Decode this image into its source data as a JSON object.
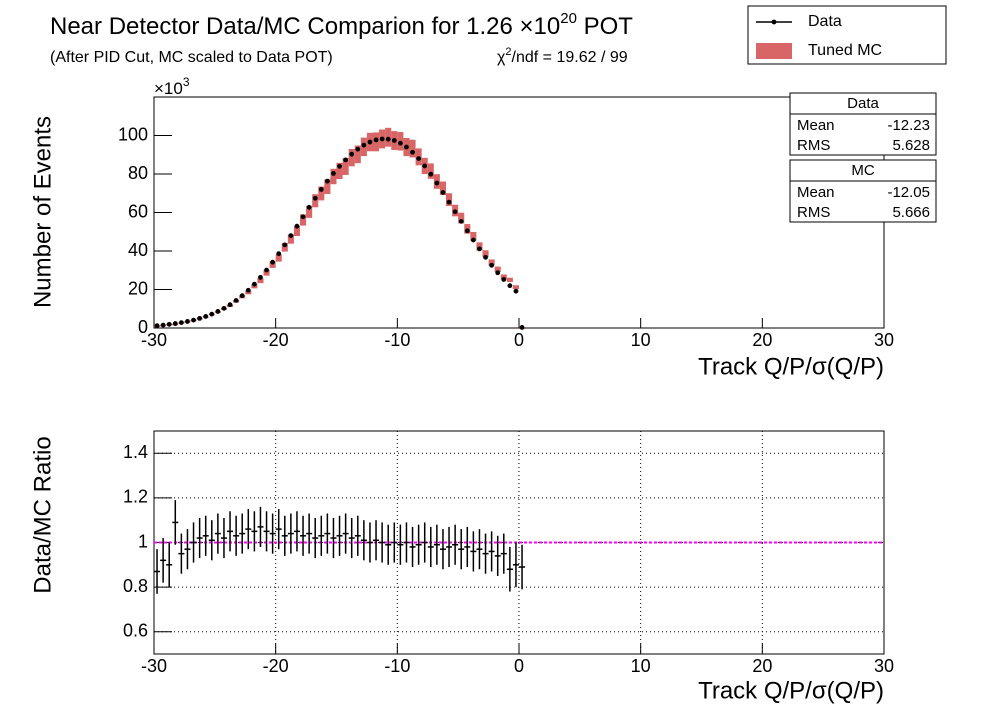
{
  "chart_data": [
    {
      "type": "hist",
      "title": "Near Detector Data/MC Comparion for 1.26 ×10",
      "title_exponent": "20",
      "title_suffix": " POT",
      "subtitle": "(After PID Cut, MC scaled to Data POT)",
      "chi2_symbol": "χ",
      "chi2_exponent": "2",
      "chi2_text": "/ndf = 19.62 / 99",
      "y_label": "Number of Events",
      "x_label": "Track Q/P/σ(Q/P)",
      "y_multiplier": "×10",
      "y_multiplier_exponent": "3",
      "x": [
        -29.75,
        -29.25,
        -28.75,
        -28.25,
        -27.75,
        -27.25,
        -26.75,
        -26.25,
        -25.75,
        -25.25,
        -24.75,
        -24.25,
        -23.75,
        -23.25,
        -22.75,
        -22.25,
        -21.75,
        -21.25,
        -20.75,
        -20.25,
        -19.75,
        -19.25,
        -18.75,
        -18.25,
        -17.75,
        -17.25,
        -16.75,
        -16.25,
        -15.75,
        -15.25,
        -14.75,
        -14.25,
        -13.75,
        -13.25,
        -12.75,
        -12.25,
        -11.75,
        -11.25,
        -10.75,
        -10.25,
        -9.75,
        -9.25,
        -8.75,
        -8.25,
        -7.75,
        -7.25,
        -6.75,
        -6.25,
        -5.75,
        -5.25,
        -4.75,
        -4.25,
        -3.75,
        -3.25,
        -2.75,
        -2.25,
        -1.75,
        -1.25,
        -0.75,
        -0.25,
        0.25
      ],
      "series": [
        {
          "name": "Data",
          "color": "#000000",
          "values": [
            1.2,
            1.5,
            1.9,
            2.3,
            2.8,
            3.4,
            4.1,
            5.0,
            6.0,
            7.2,
            8.6,
            10.2,
            12.1,
            14.3,
            16.8,
            19.6,
            22.8,
            26.3,
            30.1,
            34.2,
            38.6,
            43.2,
            48.0,
            52.9,
            57.8,
            62.7,
            67.4,
            72.0,
            76.3,
            80.3,
            84.0,
            87.3,
            90.3,
            92.9,
            95.0,
            96.6,
            97.7,
            98.2,
            98.1,
            97.4,
            96.0,
            94.0,
            91.3,
            88.0,
            84.2,
            79.9,
            75.3,
            70.4,
            65.4,
            60.4,
            55.4,
            50.5,
            45.7,
            41.1,
            36.7,
            32.6,
            28.7,
            25.2,
            22.0,
            19.1,
            0.3
          ]
        },
        {
          "name": "Tuned MC",
          "color": "#cc3333",
          "values": [
            1.3,
            1.6,
            2.1,
            2.1,
            2.9,
            3.5,
            4.1,
            4.9,
            5.8,
            7.1,
            8.3,
            10.0,
            11.5,
            13.9,
            16.2,
            18.5,
            21.7,
            24.6,
            28.7,
            32.9,
            36.4,
            41.9,
            46.2,
            50.4,
            56.1,
            60.3,
            66.1,
            69.9,
            73.4,
            78.7,
            81.6,
            83.9,
            88.5,
            90.2,
            94.1,
            96.6,
            96.7,
            98.2,
            99.1,
            97.4,
            97.0,
            94.0,
            93.2,
            88.9,
            84.2,
            81.5,
            76.1,
            72.6,
            66.7,
            61.0,
            57.1,
            51.5,
            47.6,
            42.4,
            38.6,
            34.0,
            30.5,
            26.5,
            25.0,
            21.2,
            0.3
          ],
          "errors": [
            0.06,
            0.08,
            0.1,
            0.12,
            0.14,
            0.17,
            0.2,
            0.25,
            0.3,
            0.36,
            0.43,
            0.51,
            0.6,
            0.7,
            0.8,
            1.0,
            1.1,
            1.3,
            1.5,
            1.7,
            1.9,
            2.2,
            2.4,
            2.6,
            2.9,
            3.1,
            3.4,
            3.6,
            3.8,
            4.0,
            4.2,
            4.4,
            4.5,
            4.6,
            4.8,
            4.8,
            4.9,
            4.9,
            4.9,
            4.9,
            4.8,
            4.7,
            4.6,
            4.4,
            4.2,
            4.0,
            3.8,
            3.5,
            3.3,
            3.0,
            2.8,
            2.5,
            2.3,
            2.1,
            1.8,
            1.6,
            1.4,
            1.3,
            1.1,
            1.0,
            0.02
          ]
        }
      ],
      "xlim": [
        -30,
        30
      ],
      "xticks": [
        -30,
        -20,
        -10,
        0,
        10,
        20,
        30
      ],
      "ylim": [
        0,
        120
      ],
      "yticks": [
        0,
        20,
        40,
        60,
        80,
        100
      ],
      "stats": [
        {
          "title": "Data",
          "color": "#000000",
          "rows": [
            {
              "label": "Mean",
              "value": -12.23
            },
            {
              "label": "RMS",
              "value": 5.628
            }
          ]
        },
        {
          "title": "MC",
          "color": "#ff0000",
          "rows": [
            {
              "label": "Mean",
              "value": -12.05
            },
            {
              "label": "RMS",
              "value": 5.666
            }
          ]
        }
      ]
    },
    {
      "type": "errorbar",
      "y_label": "Data/MC Ratio",
      "x_label": "Track Q/P/σ(Q/P)",
      "x": [
        -29.75,
        -29.25,
        -28.75,
        -28.25,
        -27.75,
        -27.25,
        -26.75,
        -26.25,
        -25.75,
        -25.25,
        -24.75,
        -24.25,
        -23.75,
        -23.25,
        -22.75,
        -22.25,
        -21.75,
        -21.25,
        -20.75,
        -20.25,
        -19.75,
        -19.25,
        -18.75,
        -18.25,
        -17.75,
        -17.25,
        -16.75,
        -16.25,
        -15.75,
        -15.25,
        -14.75,
        -14.25,
        -13.75,
        -13.25,
        -12.75,
        -12.25,
        -11.75,
        -11.25,
        -10.75,
        -10.25,
        -9.75,
        -9.25,
        -8.75,
        -8.25,
        -7.75,
        -7.25,
        -6.75,
        -6.25,
        -5.75,
        -5.25,
        -4.75,
        -4.25,
        -3.75,
        -3.25,
        -2.75,
        -2.25,
        -1.75,
        -1.25,
        -0.75,
        -0.25,
        0.25
      ],
      "color": "#000000",
      "values": [
        0.87,
        0.92,
        0.9,
        1.09,
        0.95,
        0.97,
        1.0,
        1.02,
        1.03,
        1.01,
        1.04,
        1.02,
        1.05,
        1.03,
        1.04,
        1.06,
        1.05,
        1.07,
        1.05,
        1.04,
        1.06,
        1.03,
        1.04,
        1.05,
        1.03,
        1.04,
        1.02,
        1.03,
        1.04,
        1.02,
        1.03,
        1.04,
        1.02,
        1.03,
        1.01,
        1.0,
        1.01,
        1.0,
        0.99,
        1.0,
        0.99,
        1.0,
        0.98,
        0.99,
        1.0,
        0.98,
        0.99,
        0.97,
        0.98,
        0.99,
        0.97,
        0.98,
        0.96,
        0.97,
        0.95,
        0.96,
        0.94,
        0.95,
        0.88,
        0.9,
        0.89
      ],
      "errors": [
        0.1,
        0.1,
        0.1,
        0.1,
        0.09,
        0.09,
        0.09,
        0.09,
        0.09,
        0.09,
        0.09,
        0.09,
        0.09,
        0.09,
        0.09,
        0.09,
        0.09,
        0.09,
        0.09,
        0.09,
        0.09,
        0.09,
        0.09,
        0.09,
        0.09,
        0.09,
        0.09,
        0.09,
        0.09,
        0.09,
        0.09,
        0.09,
        0.09,
        0.09,
        0.09,
        0.09,
        0.09,
        0.09,
        0.09,
        0.09,
        0.09,
        0.09,
        0.09,
        0.09,
        0.09,
        0.09,
        0.09,
        0.09,
        0.09,
        0.09,
        0.09,
        0.09,
        0.09,
        0.09,
        0.09,
        0.09,
        0.09,
        0.09,
        0.1,
        0.1,
        0.1
      ],
      "reference_line": {
        "value": 1,
        "color": "#ff00ff"
      },
      "xlim": [
        -30,
        30
      ],
      "xticks": [
        -30,
        -20,
        -10,
        0,
        10,
        20,
        30
      ],
      "ylim": [
        0.5,
        1.5
      ],
      "yticks": [
        0.6,
        0.8,
        1,
        1.2,
        1.4
      ],
      "grid": true
    }
  ]
}
